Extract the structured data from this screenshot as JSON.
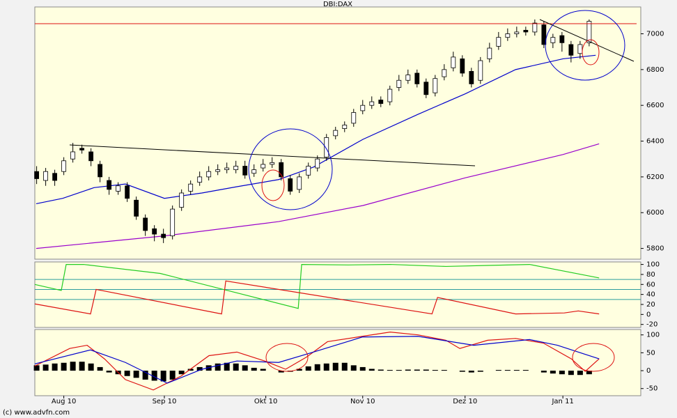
{
  "chart_data": [
    {
      "type": "candlestick",
      "title": "DBI:DAX",
      "xlim": [
        -0.2,
        66.7
      ],
      "ylim": [
        5740,
        7150
      ],
      "yticks": [
        5800,
        6000,
        6200,
        6400,
        6600,
        6800,
        7000
      ],
      "open": [
        6230,
        6180,
        6220,
        6230,
        6300,
        6360,
        6340,
        6270,
        6180,
        6120,
        6150,
        6070,
        5970,
        5910,
        5880,
        5870,
        6030,
        6120,
        6170,
        6200,
        6230,
        6240,
        6240,
        6260,
        6220,
        6250,
        6270,
        6280,
        6190,
        6130,
        6210,
        6250,
        6310,
        6430,
        6470,
        6500,
        6570,
        6600,
        6630,
        6620,
        6700,
        6740,
        6780,
        6730,
        6670,
        6760,
        6810,
        6860,
        6790,
        6740,
        6860,
        6930,
        6980,
        7000,
        7020,
        7010,
        7050,
        6950,
        6990,
        6940,
        6890,
        6950
      ],
      "high": [
        6260,
        6250,
        6240,
        6310,
        6390,
        6380,
        6360,
        6290,
        6200,
        6170,
        6170,
        6090,
        5990,
        5930,
        5910,
        6040,
        6130,
        6180,
        6230,
        6260,
        6270,
        6280,
        6290,
        6290,
        6270,
        6300,
        6310,
        6300,
        6210,
        6220,
        6280,
        6320,
        6440,
        6480,
        6510,
        6580,
        6630,
        6650,
        6650,
        6710,
        6770,
        6800,
        6800,
        6750,
        6770,
        6830,
        6900,
        6880,
        6810,
        6870,
        6950,
        7010,
        7030,
        7040,
        7040,
        7080,
        7070,
        7000,
        7010,
        6960,
        6960,
        7080
      ],
      "low": [
        6160,
        6150,
        6150,
        6210,
        6280,
        6330,
        6260,
        6170,
        6100,
        6100,
        6060,
        5960,
        5870,
        5840,
        5830,
        5850,
        6010,
        6100,
        6150,
        6180,
        6210,
        6220,
        6220,
        6190,
        6200,
        6230,
        6250,
        6180,
        6100,
        6110,
        6190,
        6230,
        6290,
        6410,
        6450,
        6480,
        6550,
        6580,
        6590,
        6600,
        6680,
        6720,
        6700,
        6640,
        6650,
        6740,
        6790,
        6760,
        6700,
        6720,
        6840,
        6910,
        6960,
        6980,
        6990,
        6990,
        6920,
        6920,
        6900,
        6840,
        6860,
        6930
      ],
      "close": [
        6190,
        6230,
        6180,
        6290,
        6340,
        6350,
        6290,
        6200,
        6130,
        6150,
        6080,
        5980,
        5900,
        5880,
        5860,
        6020,
        6110,
        6160,
        6200,
        6230,
        6240,
        6250,
        6260,
        6210,
        6240,
        6270,
        6280,
        6200,
        6120,
        6200,
        6260,
        6300,
        6420,
        6460,
        6490,
        6560,
        6600,
        6620,
        6610,
        6690,
        6740,
        6770,
        6720,
        6660,
        6750,
        6800,
        6870,
        6780,
        6720,
        6850,
        6920,
        6980,
        7000,
        7010,
        7010,
        7060,
        6940,
        6980,
        6950,
        6880,
        6940,
        7070
      ],
      "series": [
        {
          "color": "#0000cc",
          "x": [
            -0.05,
            2.88,
            6.34,
            9.8,
            14.11,
            18.26,
            22.11,
            26.72,
            30.57,
            36.03,
            42.11,
            47.34,
            52.88,
            58.11,
            61.72
          ],
          "values": [
            6050,
            6080,
            6140,
            6160,
            6080,
            6110,
            6145,
            6185,
            6255,
            6410,
            6550,
            6665,
            6800,
            6860,
            6880
          ]
        },
        {
          "color": "#9900cc",
          "x": [
            -0.05,
            14.11,
            26.72,
            36.03,
            47.34,
            58.11,
            62.1
          ],
          "values": [
            5800,
            5870,
            5950,
            6040,
            6195,
            6325,
            6385
          ]
        }
      ]
    },
    {
      "type": "line",
      "xlim": [
        -0.2,
        66.7
      ],
      "ylim": [
        -26,
        105
      ],
      "yticks": [
        -20,
        0,
        20,
        40,
        60,
        80,
        100
      ],
      "levels": [
        70,
        50,
        30
      ],
      "level_color": "#2a9d9d",
      "series": [
        {
          "color": "#22cc22",
          "x": [
            -0.2,
            2.72,
            3.26,
            5.18,
            13.65,
            28.88,
            29.26,
            34.42,
            39.03,
            45.18,
            49.8,
            54.42,
            62.1
          ],
          "values": [
            60,
            48,
            100,
            100,
            82,
            12,
            100,
            99,
            100,
            96,
            98,
            100,
            73
          ]
        },
        {
          "color": "#dd1111",
          "x": [
            -0.2,
            5.95,
            6.57,
            20.42,
            20.88,
            43.65,
            44.26,
            52.88,
            58.26,
            59.8,
            62.1
          ],
          "values": [
            21,
            1,
            50,
            1,
            67,
            1,
            34,
            1,
            3,
            7,
            1
          ]
        }
      ]
    },
    {
      "type": "macd",
      "xlim": [
        -0.2,
        66.7
      ],
      "ylim": [
        -70,
        115
      ],
      "yticks": [
        -50,
        0,
        50,
        100
      ],
      "xticks": [
        {
          "value": 3,
          "label": "Aug 10"
        },
        {
          "value": 14.1,
          "label": "Sep 10"
        },
        {
          "value": 25.3,
          "label": "Okt 10"
        },
        {
          "value": 36,
          "label": "Nov 10"
        },
        {
          "value": 47.3,
          "label": "Dez 10"
        },
        {
          "value": 58.1,
          "label": "Jan 11"
        }
      ],
      "histogram": {
        "color": "#000000",
        "values": [
          15,
          17,
          20,
          22,
          25,
          25,
          20,
          10,
          -5,
          -10,
          -15,
          -20,
          -25,
          -28,
          -30,
          -25,
          -10,
          5,
          10,
          15,
          20,
          22,
          20,
          15,
          8,
          5,
          0,
          -5,
          -3,
          5,
          12,
          18,
          20,
          22,
          22,
          15,
          10,
          5,
          3,
          2,
          2,
          3,
          3,
          3,
          2,
          2,
          0,
          -3,
          -5,
          -3,
          0,
          2,
          2,
          2,
          2,
          0,
          -5,
          -8,
          -10,
          -12,
          -12,
          -10
        ]
      },
      "series": [
        {
          "color": "#dd1111",
          "x": [
            -0.2,
            3.65,
            5.57,
            7.49,
            9.8,
            12.88,
            15.95,
            19.03,
            22.11,
            25.18,
            27.49,
            29.8,
            32.11,
            35.95,
            39.03,
            42.11,
            45.18,
            46.72,
            49.8,
            52.88,
            55.95,
            59.03,
            60.57,
            62.1
          ],
          "values": [
            13,
            62,
            71,
            33,
            -25,
            -54,
            -15,
            42,
            52,
            27,
            4,
            38,
            81,
            96,
            108,
            100,
            85,
            62,
            85,
            90,
            77,
            33,
            -2,
            33
          ]
        },
        {
          "color": "#0000cc",
          "x": [
            -0.2,
            5.95,
            9.8,
            14.42,
            18.26,
            22.11,
            26.72,
            30.57,
            35.95,
            42.11,
            48.26,
            54.42,
            57.49,
            62.1
          ],
          "values": [
            19,
            58,
            23,
            -35,
            4,
            27,
            23,
            52,
            94,
            96,
            71,
            87,
            71,
            33
          ]
        }
      ]
    }
  ],
  "footer": "(c) www.advfn.com"
}
